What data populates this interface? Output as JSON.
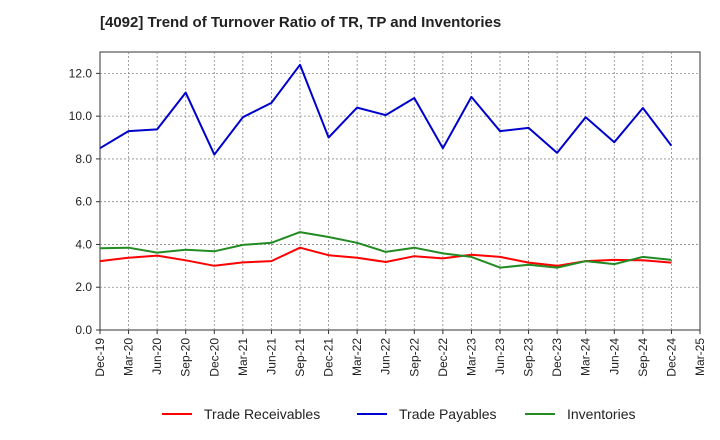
{
  "chart_data": {
    "type": "line",
    "title": "[4092]  Trend of Turnover Ratio of TR, TP and Inventories",
    "xlabel": "",
    "ylabel": "",
    "ylim": [
      0,
      13
    ],
    "yticks": [
      "0.0",
      "2.0",
      "4.0",
      "6.0",
      "8.0",
      "10.0",
      "12.0"
    ],
    "categories": [
      "Dec-19",
      "Mar-20",
      "Jun-20",
      "Sep-20",
      "Dec-20",
      "Mar-21",
      "Jun-21",
      "Sep-21",
      "Dec-21",
      "Mar-22",
      "Jun-22",
      "Sep-22",
      "Dec-22",
      "Mar-23",
      "Jun-23",
      "Sep-23",
      "Dec-23",
      "Mar-24",
      "Jun-24",
      "Sep-24",
      "Dec-24",
      "Mar-25"
    ],
    "grid": true,
    "legend_position": "bottom",
    "series": [
      {
        "name": "Trade Receivables",
        "color": "#ff0000",
        "values": [
          3.22,
          3.38,
          3.48,
          3.26,
          3.0,
          3.16,
          3.22,
          3.85,
          3.5,
          3.38,
          3.18,
          3.45,
          3.35,
          3.52,
          3.42,
          3.15,
          3.0,
          3.22,
          3.28,
          3.26,
          3.15,
          null
        ]
      },
      {
        "name": "Trade Payables",
        "color": "#0000cc",
        "values": [
          8.5,
          9.3,
          9.38,
          11.1,
          8.2,
          9.95,
          10.62,
          12.4,
          9.0,
          10.4,
          10.05,
          10.85,
          8.5,
          10.9,
          9.3,
          9.45,
          8.28,
          9.95,
          8.78,
          10.38,
          8.62,
          null
        ]
      },
      {
        "name": "Inventories",
        "color": "#228b22",
        "values": [
          3.82,
          3.85,
          3.62,
          3.75,
          3.68,
          3.98,
          4.08,
          4.58,
          4.35,
          4.08,
          3.65,
          3.85,
          3.58,
          3.42,
          2.92,
          3.05,
          2.92,
          3.22,
          3.08,
          3.42,
          3.28,
          null
        ]
      }
    ]
  }
}
